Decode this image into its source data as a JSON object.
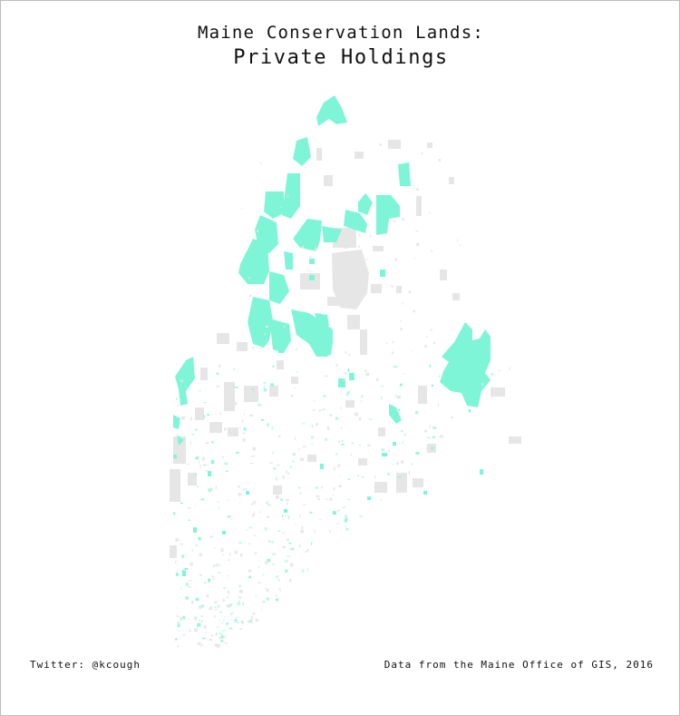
{
  "title": {
    "line1": "Maine Conservation Lands:",
    "line2": "Private Holdings"
  },
  "credits": {
    "author": "Twitter: @kcough",
    "source": "Data from the Maine Office of GIS, 2016"
  },
  "colors": {
    "private_holding": "#7ff5d8",
    "other_conservation_land": "#e6e6e6",
    "background": "#ffffff",
    "border": "#bdbdbd"
  },
  "legend_categories": [
    "private-holding",
    "other-conservation-land"
  ]
}
